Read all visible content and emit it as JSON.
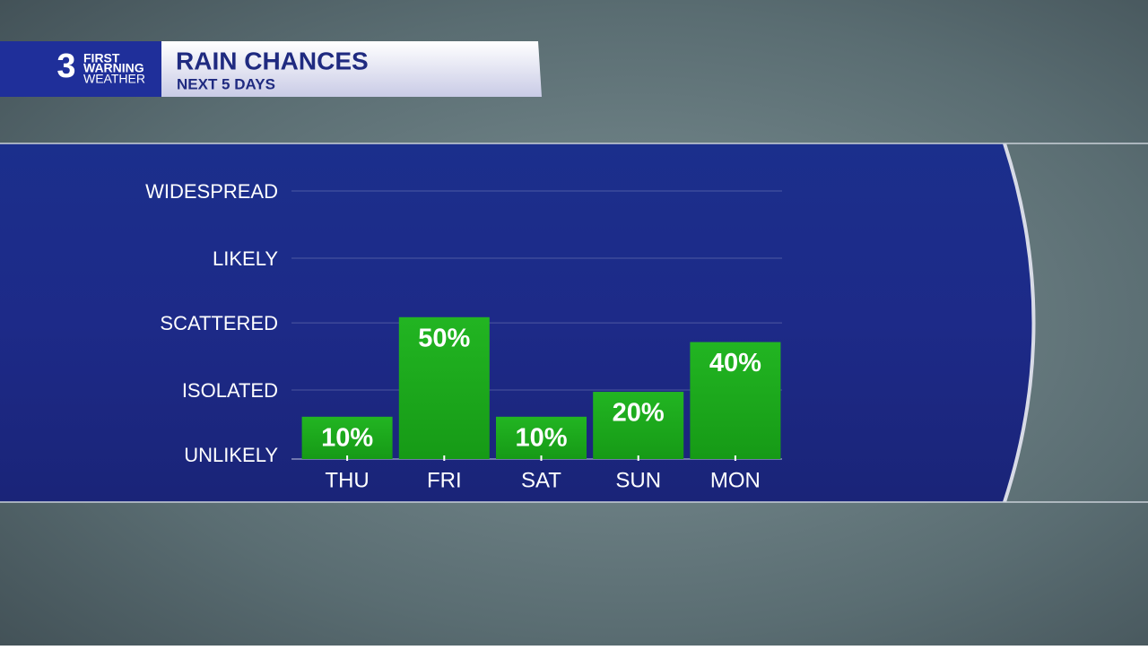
{
  "logo": {
    "number": "3",
    "line1": "FIRST",
    "line2": "WARNING",
    "line3": "WEATHER"
  },
  "chart_data": {
    "type": "bar",
    "title": "RAIN CHANCES",
    "subtitle": "NEXT 5 DAYS",
    "categories": [
      "THU",
      "FRI",
      "SAT",
      "SUN",
      "MON"
    ],
    "values": [
      10,
      50,
      10,
      20,
      40
    ],
    "value_labels": [
      "10%",
      "50%",
      "10%",
      "20%",
      "40%"
    ],
    "color": "#1ca81c",
    "ylim": [
      -7,
      100
    ],
    "yticks": [
      {
        "value": -6,
        "label": "UNLIKELY"
      },
      {
        "value": 20,
        "label": "ISOLATED"
      },
      {
        "value": 47,
        "label": "SCATTERED"
      },
      {
        "value": 73,
        "label": "LIKELY"
      },
      {
        "value": 100,
        "label": "WIDESPREAD"
      }
    ],
    "grid": true
  }
}
